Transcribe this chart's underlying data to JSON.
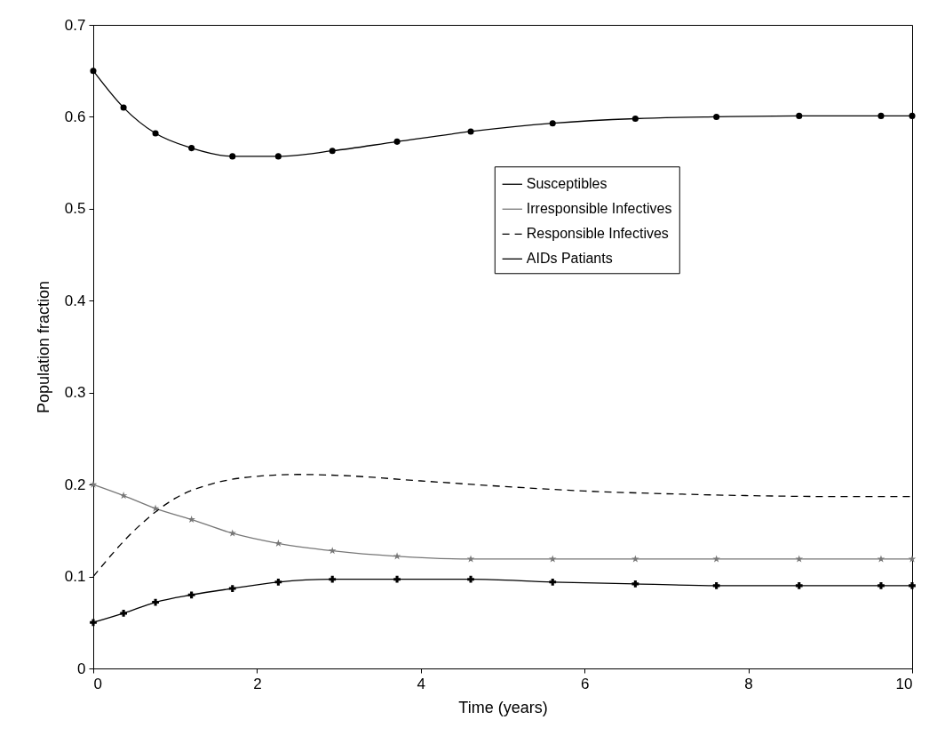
{
  "chart_data": {
    "type": "line",
    "xlabel": "Time (years)",
    "ylabel": "Population fraction",
    "xlim": [
      0,
      10
    ],
    "xticks": [
      0,
      2,
      4,
      6,
      8,
      10
    ],
    "ylim": [
      0,
      0.7
    ],
    "yticks": [
      0,
      0.1,
      0.2,
      0.3,
      0.4,
      0.5,
      0.6,
      0.7
    ],
    "grid": false,
    "legend": "top right",
    "series": [
      {
        "name": "Susceptibles",
        "color": "#000000",
        "marker": "circle",
        "line_style": "solid",
        "x": [
          0,
          0.37,
          0.76,
          1.2,
          1.7,
          2.26,
          2.92,
          3.71,
          4.61,
          5.61,
          6.62,
          7.61,
          8.62,
          9.62,
          10
        ],
        "values": [
          0.65,
          0.61,
          0.582,
          0.566,
          0.557,
          0.557,
          0.563,
          0.573,
          0.584,
          0.593,
          0.598,
          0.6,
          0.601,
          0.601,
          0.601
        ]
      },
      {
        "name": "Irresponsible Infectives",
        "color": "#777777",
        "marker": "star",
        "line_style": "solid",
        "x": [
          0,
          0.37,
          0.76,
          1.2,
          1.7,
          2.26,
          2.92,
          3.71,
          4.61,
          5.61,
          6.62,
          7.61,
          8.62,
          9.62,
          10
        ],
        "values": [
          0.2,
          0.188,
          0.174,
          0.162,
          0.147,
          0.136,
          0.128,
          0.122,
          0.119,
          0.119,
          0.119,
          0.119,
          0.119,
          0.119,
          0.119
        ]
      },
      {
        "name": "Responsible Infectives",
        "color": "#000000",
        "marker": "none",
        "line_style": "dashed",
        "x": [
          0,
          0.5,
          1,
          1.5,
          2,
          2.5,
          3,
          4,
          5,
          6,
          7,
          8,
          9,
          10
        ],
        "values": [
          0.1,
          0.15,
          0.185,
          0.202,
          0.209,
          0.211,
          0.21,
          0.204,
          0.198,
          0.193,
          0.19,
          0.188,
          0.187,
          0.187
        ]
      },
      {
        "name": "AIDs Patiants",
        "color": "#000000",
        "marker": "cross",
        "line_style": "solid",
        "x": [
          0,
          0.37,
          0.76,
          1.2,
          1.7,
          2.26,
          2.92,
          3.71,
          4.61,
          5.61,
          6.62,
          7.61,
          8.62,
          9.62,
          10
        ],
        "values": [
          0.05,
          0.06,
          0.072,
          0.08,
          0.087,
          0.094,
          0.097,
          0.097,
          0.097,
          0.094,
          0.092,
          0.09,
          0.09,
          0.09,
          0.09
        ]
      }
    ]
  }
}
